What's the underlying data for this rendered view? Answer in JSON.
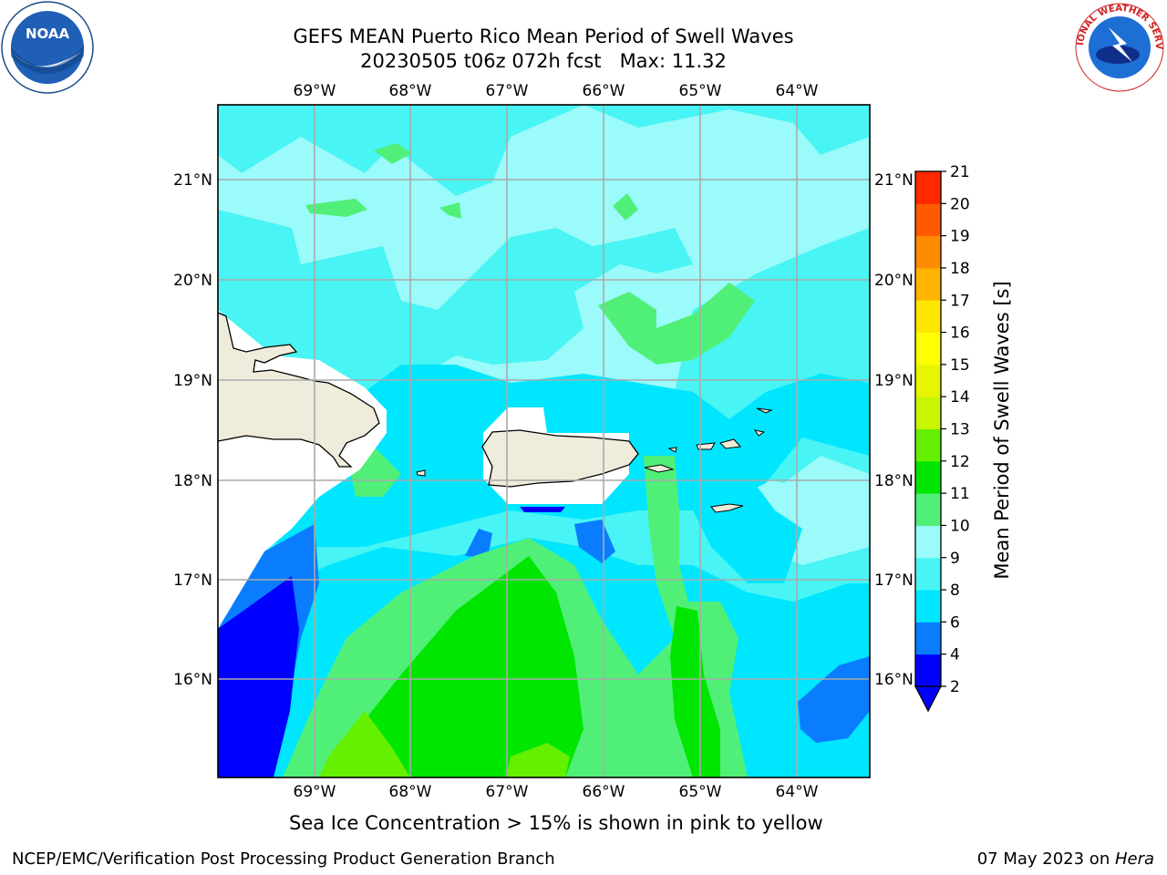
{
  "title": {
    "line1": "GEFS MEAN Puerto Rico Mean Period of Swell Waves",
    "line2": "20230505 t06z 072h fcst   Max: 11.32"
  },
  "axes": {
    "lon_labels": [
      "69°W",
      "68°W",
      "67°W",
      "66°W",
      "65°W",
      "64°W"
    ],
    "lat_labels": [
      "21°N",
      "20°N",
      "19°N",
      "18°N",
      "17°N",
      "16°N"
    ]
  },
  "colorbar": {
    "label": "Mean Period of Swell Waves [s]",
    "ticks": [
      "2",
      "4",
      "6",
      "8",
      "9",
      "10",
      "11",
      "12",
      "13",
      "14",
      "15",
      "16",
      "17",
      "18",
      "19",
      "20",
      "21"
    ],
    "colors": [
      "#0000ff",
      "#0a7dff",
      "#00e6ff",
      "#48f4f4",
      "#9bfafa",
      "#50f078",
      "#00e600",
      "#64f000",
      "#c8f500",
      "#e6f500",
      "#ffff00",
      "#ffe600",
      "#ffb400",
      "#ff8c00",
      "#ff5a00",
      "#ff2800",
      "#ff0000"
    ],
    "extend_color": "#0000ff"
  },
  "note": "Sea Ice Concentration > 15% is shown in pink to yellow",
  "footer": {
    "left": "NCEP/EMC/Verification Post Processing Product Generation Branch",
    "right_date": "07 May 2023 on ",
    "right_machine": "Hera"
  },
  "logos": {
    "noaa": "NOAA",
    "nws": "NATIONAL WEATHER SERVICE"
  }
}
